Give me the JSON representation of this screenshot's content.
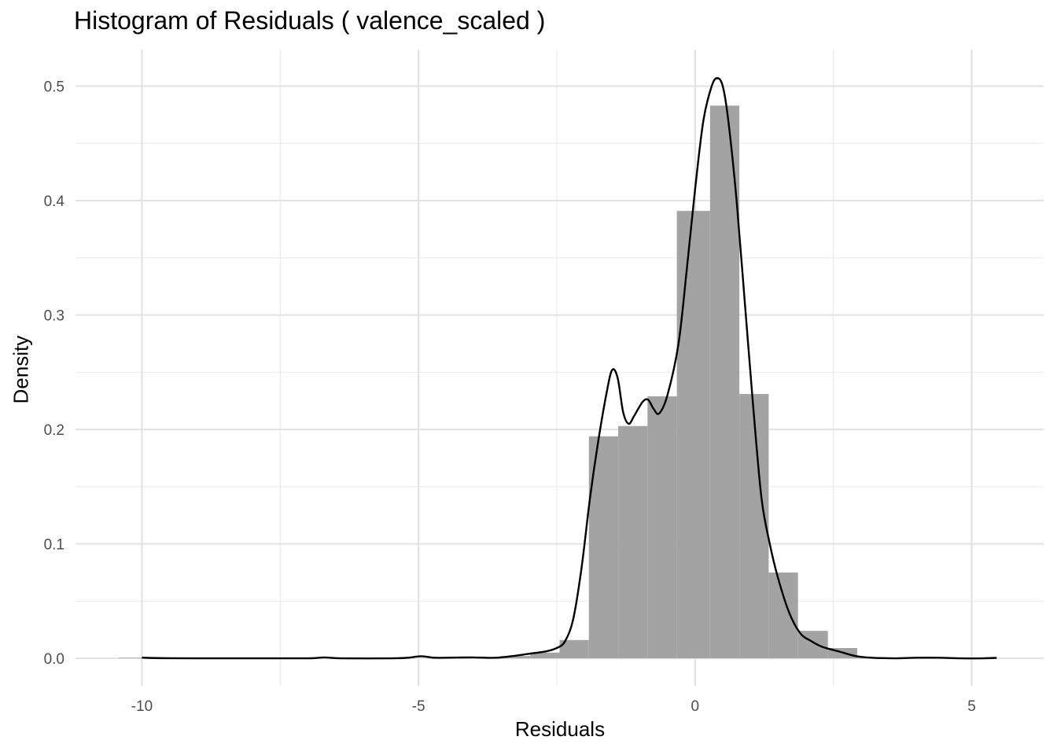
{
  "chart_data": {
    "type": "histogram",
    "title": "Histogram of Residuals ( valence_scaled )",
    "xlabel": "Residuals",
    "ylabel": "Density",
    "xlim": [
      -11.2,
      6.3
    ],
    "ylim": [
      -0.024,
      0.532
    ],
    "x_ticks": [
      {
        "value": -10,
        "label": "-10"
      },
      {
        "value": -5,
        "label": "-5"
      },
      {
        "value": 0,
        "label": "0"
      },
      {
        "value": 5,
        "label": "5"
      }
    ],
    "y_ticks": [
      {
        "value": 0.0,
        "label": "0.0"
      },
      {
        "value": 0.1,
        "label": "0.1"
      },
      {
        "value": 0.2,
        "label": "0.2"
      },
      {
        "value": 0.3,
        "label": "0.3"
      },
      {
        "value": 0.4,
        "label": "0.4"
      },
      {
        "value": 0.5,
        "label": "0.5"
      }
    ],
    "grid": true,
    "histogram": {
      "bin_width": 0.532,
      "bins": [
        {
          "x0": -10.42,
          "x1": -9.89,
          "density": 0.0005
        },
        {
          "x0": -3.52,
          "x1": -2.98,
          "density": 0.002
        },
        {
          "x0": -2.98,
          "x1": -2.45,
          "density": 0.005
        },
        {
          "x0": -2.45,
          "x1": -1.92,
          "density": 0.016
        },
        {
          "x0": -1.92,
          "x1": -1.39,
          "density": 0.194
        },
        {
          "x0": -1.39,
          "x1": -0.86,
          "density": 0.203
        },
        {
          "x0": -0.86,
          "x1": -0.33,
          "density": 0.229
        },
        {
          "x0": -0.33,
          "x1": 0.27,
          "density": 0.391
        },
        {
          "x0": 0.27,
          "x1": 0.8,
          "density": 0.483
        },
        {
          "x0": 0.8,
          "x1": 1.33,
          "density": 0.231
        },
        {
          "x0": 1.33,
          "x1": 1.86,
          "density": 0.075
        },
        {
          "x0": 1.86,
          "x1": 2.4,
          "density": 0.024
        },
        {
          "x0": 2.4,
          "x1": 2.93,
          "density": 0.009
        },
        {
          "x0": 2.93,
          "x1": 3.46,
          "density": 0.001
        }
      ],
      "fill": "#a3a3a3"
    },
    "density_curve": {
      "color": "#000000",
      "points": [
        [
          -10.0,
          0.0006
        ],
        [
          -9.5,
          0.0001
        ],
        [
          -8.0,
          0.0
        ],
        [
          -7.0,
          0.0
        ],
        [
          -6.7,
          0.0008
        ],
        [
          -6.4,
          0.0
        ],
        [
          -5.5,
          0.0
        ],
        [
          -5.2,
          0.0005
        ],
        [
          -4.95,
          0.0018
        ],
        [
          -4.7,
          0.0005
        ],
        [
          -4.3,
          0.0007
        ],
        [
          -4.0,
          0.0008
        ],
        [
          -3.6,
          0.0005
        ],
        [
          -3.3,
          0.002
        ],
        [
          -3.0,
          0.004
        ],
        [
          -2.7,
          0.006
        ],
        [
          -2.5,
          0.009
        ],
        [
          -2.35,
          0.015
        ],
        [
          -2.2,
          0.035
        ],
        [
          -2.05,
          0.08
        ],
        [
          -1.9,
          0.14
        ],
        [
          -1.75,
          0.19
        ],
        [
          -1.6,
          0.232
        ],
        [
          -1.5,
          0.252
        ],
        [
          -1.4,
          0.245
        ],
        [
          -1.3,
          0.215
        ],
        [
          -1.2,
          0.205
        ],
        [
          -1.1,
          0.212
        ],
        [
          -0.95,
          0.224
        ],
        [
          -0.85,
          0.226
        ],
        [
          -0.75,
          0.218
        ],
        [
          -0.65,
          0.214
        ],
        [
          -0.5,
          0.23
        ],
        [
          -0.3,
          0.275
        ],
        [
          -0.15,
          0.34
        ],
        [
          0.0,
          0.41
        ],
        [
          0.15,
          0.47
        ],
        [
          0.3,
          0.5
        ],
        [
          0.4,
          0.507
        ],
        [
          0.5,
          0.5
        ],
        [
          0.6,
          0.47
        ],
        [
          0.75,
          0.4
        ],
        [
          0.9,
          0.31
        ],
        [
          1.05,
          0.22
        ],
        [
          1.2,
          0.14
        ],
        [
          1.35,
          0.1
        ],
        [
          1.5,
          0.07
        ],
        [
          1.7,
          0.04
        ],
        [
          1.9,
          0.022
        ],
        [
          2.1,
          0.015
        ],
        [
          2.3,
          0.01
        ],
        [
          2.6,
          0.006
        ],
        [
          2.9,
          0.002
        ],
        [
          3.2,
          0.0005
        ],
        [
          3.6,
          0.0
        ],
        [
          4.0,
          0.0005
        ],
        [
          4.4,
          0.0005
        ],
        [
          4.8,
          0.0
        ],
        [
          5.2,
          0.0
        ],
        [
          5.45,
          0.0004
        ]
      ]
    }
  }
}
